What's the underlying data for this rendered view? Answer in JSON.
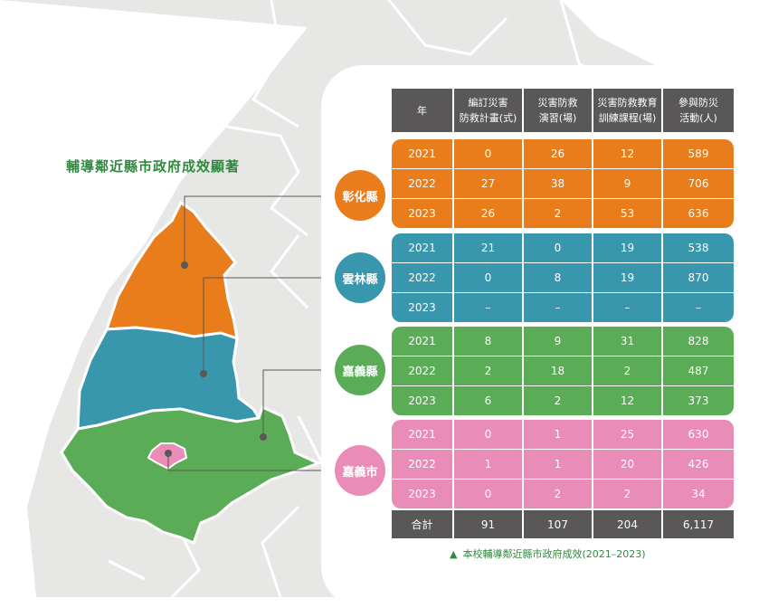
{
  "title": "輔導鄰近縣市政府成效顯著",
  "table": {
    "headers": [
      "年",
      "編訂災害\n防救計畫(式)",
      "災害防救\n演習(場)",
      "災害防救教育\n訓練課程(場)",
      "參與防災\n活動(人)"
    ],
    "groups": [
      {
        "region": "彰化縣",
        "color": "#e97c1b",
        "rows": [
          [
            "2021",
            "0",
            "26",
            "12",
            "589"
          ],
          [
            "2022",
            "27",
            "38",
            "9",
            "706"
          ],
          [
            "2023",
            "26",
            "2",
            "53",
            "636"
          ]
        ]
      },
      {
        "region": "雲林縣",
        "color": "#3896ad",
        "rows": [
          [
            "2021",
            "21",
            "0",
            "19",
            "538"
          ],
          [
            "2022",
            "0",
            "8",
            "19",
            "870"
          ],
          [
            "2023",
            "–",
            "–",
            "–",
            "–"
          ]
        ]
      },
      {
        "region": "嘉義縣",
        "color": "#5aac57",
        "rows": [
          [
            "2021",
            "8",
            "9",
            "31",
            "828"
          ],
          [
            "2022",
            "2",
            "18",
            "2",
            "487"
          ],
          [
            "2023",
            "6",
            "2",
            "12",
            "373"
          ]
        ]
      },
      {
        "region": "嘉義市",
        "color": "#ea8cb8",
        "rows": [
          [
            "2021",
            "0",
            "1",
            "25",
            "630"
          ],
          [
            "2022",
            "1",
            "1",
            "20",
            "426"
          ],
          [
            "2023",
            "0",
            "2",
            "2",
            "34"
          ]
        ]
      }
    ],
    "totals": [
      "合計",
      "91",
      "107",
      "204",
      "6,117"
    ]
  },
  "caption": {
    "marker": "▲",
    "text": "本校輔導鄰近縣市政府成效(2021–2023)"
  },
  "colors": {
    "background_map": "#e7e7e6",
    "map_borders": "#ffffff",
    "header_bg": "#595757",
    "accent_text": "#2f8a3f"
  }
}
